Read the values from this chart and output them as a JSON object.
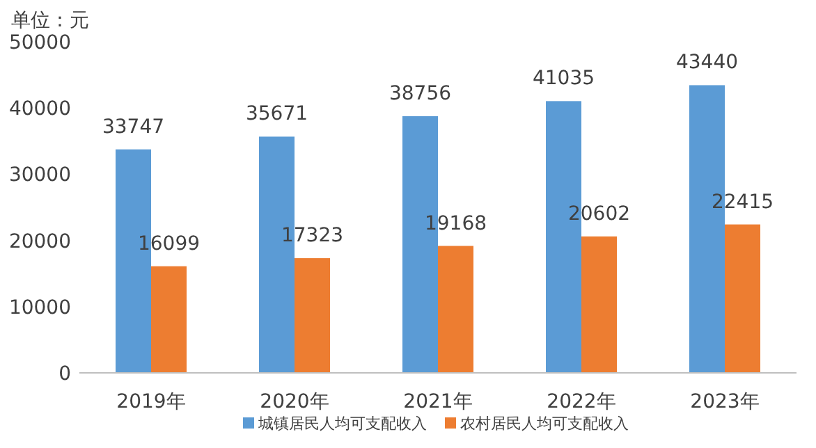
{
  "chart_data": {
    "type": "bar",
    "ylabel": "单位：元",
    "categories": [
      "2019年",
      "2020年",
      "2021年",
      "2022年",
      "2023年"
    ],
    "series": [
      {
        "name": "城镇居民人均可支配收入",
        "color": "#5b9bd5",
        "values": [
          33747,
          35671,
          38756,
          41035,
          43440
        ]
      },
      {
        "name": "农村居民人均可支配收入",
        "color": "#ed7d31",
        "values": [
          16099,
          17323,
          19168,
          20602,
          22415
        ]
      }
    ],
    "ylim": [
      0,
      50000
    ],
    "yticks": [
      0,
      10000,
      20000,
      30000,
      40000,
      50000
    ],
    "data_labels": true,
    "legend": "bottom",
    "grid": false
  }
}
